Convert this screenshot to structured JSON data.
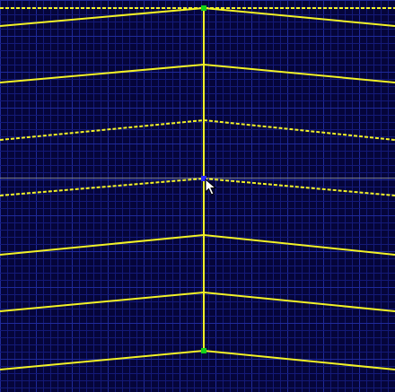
{
  "viewport": {
    "grid_major_spacing_label": "",
    "colors": {
      "background": "#05053a",
      "grid_minor": "#141a78",
      "grid_major": "#1f2a9a",
      "mesh_line": "#f2f226",
      "guide_line": "#7b7f8f",
      "vertex_selected": "#12d11a",
      "vertex_active": "#2b2bff",
      "cursor": "#ffffff"
    },
    "icons": {
      "cursor": "pointer-arrow-icon"
    },
    "mesh": {
      "center_column_style": "solid",
      "chevron_count": 7,
      "selected_vertices": [
        "top-vertex",
        "bottom-vertex"
      ],
      "active_vertex": "cursor-vertex"
    }
  }
}
